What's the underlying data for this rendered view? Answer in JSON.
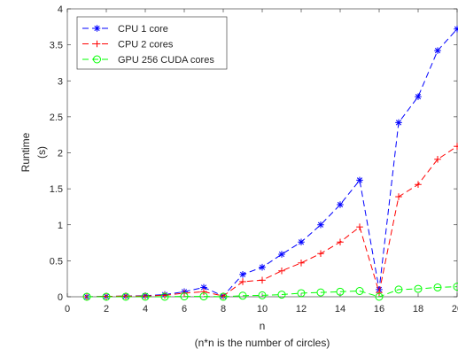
{
  "chart_data": {
    "type": "line",
    "title": "",
    "xlabel": "n",
    "xlabel_note": "(n*n is the number of circles)",
    "ylabel": [
      "Runtime",
      "(s)"
    ],
    "xlim": [
      0,
      20
    ],
    "ylim": [
      0,
      4
    ],
    "xticks": [
      0,
      2,
      4,
      6,
      8,
      10,
      12,
      14,
      16,
      18,
      20
    ],
    "yticks": [
      0,
      0.5,
      1,
      1.5,
      2,
      2.5,
      3,
      3.5,
      4
    ],
    "ytick_labels": [
      "0",
      "0.5",
      "1",
      "1.5",
      "2",
      "2.5",
      "3",
      "3.5",
      "4"
    ],
    "grid": false,
    "legend_position": "top-left",
    "x": [
      1,
      2,
      3,
      4,
      5,
      6,
      7,
      8,
      9,
      10,
      11,
      12,
      13,
      14,
      15,
      16,
      17,
      18,
      19,
      20
    ],
    "series": [
      {
        "name": "CPU 1 core",
        "color": "#0000ff",
        "marker": "asterisk",
        "line_style": "dashed",
        "values": [
          0,
          0.005,
          0.01,
          0.015,
          0.03,
          0.07,
          0.13,
          0.01,
          0.31,
          0.41,
          0.59,
          0.76,
          1.0,
          1.28,
          1.62,
          0.1,
          2.42,
          2.78,
          3.42,
          3.72
        ]
      },
      {
        "name": "CPU 2 cores",
        "color": "#ff0000",
        "marker": "plus",
        "line_style": "dashed",
        "values": [
          0,
          0.005,
          0.01,
          0.01,
          0.02,
          0.05,
          0.07,
          0.01,
          0.21,
          0.23,
          0.36,
          0.47,
          0.6,
          0.76,
          0.97,
          0.06,
          1.39,
          1.56,
          1.91,
          2.09
        ]
      },
      {
        "name": "GPU 256 CUDA cores",
        "color": "#00ff00",
        "marker": "circle",
        "line_style": "dashed",
        "values": [
          0,
          0,
          0,
          0,
          0,
          0.005,
          0.005,
          0,
          0.015,
          0.02,
          0.03,
          0.05,
          0.06,
          0.07,
          0.08,
          0,
          0.1,
          0.11,
          0.13,
          0.14
        ]
      }
    ]
  }
}
